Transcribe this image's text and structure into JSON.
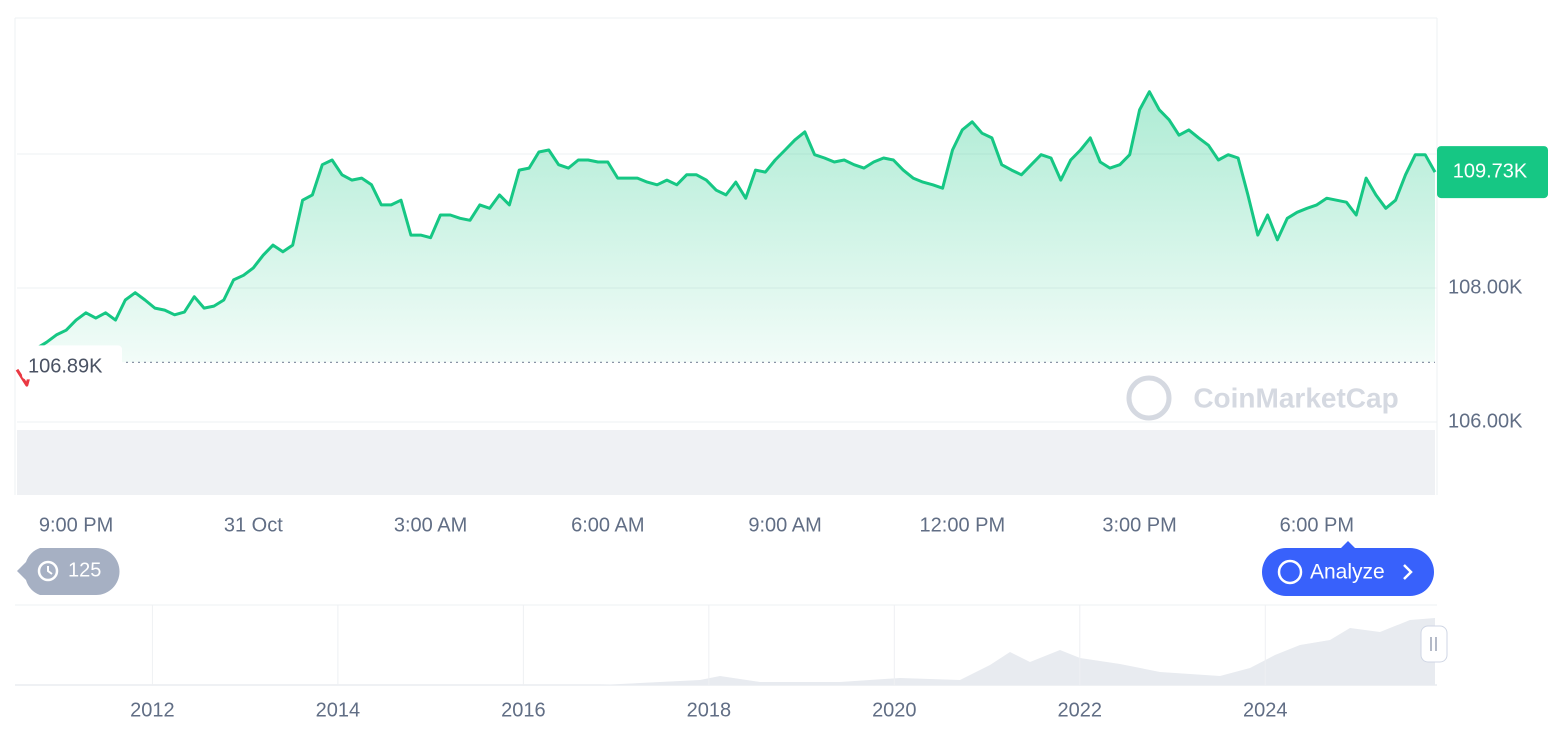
{
  "chart_data": {
    "type": "line",
    "color": "#16c784",
    "down_color": "#ea3943",
    "categories": [
      null,
      null,
      null,
      null,
      null,
      null,
      "9:00 PM",
      null,
      null,
      null,
      null,
      null,
      null,
      null,
      null,
      null,
      null,
      null,
      null,
      null,
      null,
      null,
      null,
      null,
      "31 Oct",
      null,
      null,
      null,
      null,
      null,
      null,
      null,
      null,
      null,
      null,
      null,
      null,
      null,
      null,
      null,
      null,
      null,
      "3:00 AM",
      null,
      null,
      null,
      null,
      null,
      null,
      null,
      null,
      null,
      null,
      null,
      null,
      null,
      null,
      null,
      null,
      null,
      "6:00 AM",
      null,
      null,
      null,
      null,
      null,
      null,
      null,
      null,
      null,
      null,
      null,
      null,
      null,
      null,
      null,
      null,
      null,
      "9:00 AM",
      null,
      null,
      null,
      null,
      null,
      null,
      null,
      null,
      null,
      null,
      null,
      null,
      null,
      null,
      null,
      null,
      null,
      "12:00 PM",
      null,
      null,
      null,
      null,
      null,
      null,
      null,
      null,
      null,
      null,
      null,
      null,
      null,
      null,
      null,
      null,
      null,
      "3:00 PM",
      null,
      null,
      null,
      null,
      null,
      null,
      null,
      null,
      null,
      null,
      null,
      null,
      null,
      null,
      null,
      null,
      null,
      "6:00 PM",
      null,
      null,
      null,
      null,
      null,
      null,
      null,
      null,
      null,
      null,
      null,
      null
    ],
    "values": [
      106780,
      106550,
      107100,
      107190,
      107300,
      107370,
      107520,
      107630,
      107550,
      107630,
      107520,
      107820,
      107930,
      107820,
      107700,
      107670,
      107600,
      107640,
      107870,
      107700,
      107730,
      107820,
      108120,
      108190,
      108300,
      108490,
      108640,
      108540,
      108640,
      109310,
      109390,
      109840,
      109910,
      109690,
      109610,
      109640,
      109540,
      109240,
      109240,
      109310,
      108790,
      108790,
      108750,
      109090,
      109090,
      109040,
      109010,
      109240,
      109190,
      109390,
      109240,
      109760,
      109790,
      110030,
      110060,
      109840,
      109790,
      109910,
      109910,
      109880,
      109880,
      109640,
      109640,
      109640,
      109580,
      109540,
      109610,
      109540,
      109690,
      109690,
      109610,
      109460,
      109390,
      109580,
      109340,
      109760,
      109730,
      109910,
      110060,
      110210,
      110330,
      109990,
      109940,
      109880,
      109910,
      109840,
      109790,
      109880,
      109940,
      109910,
      109760,
      109640,
      109580,
      109540,
      109490,
      110060,
      110360,
      110480,
      110310,
      110240,
      109840,
      109760,
      109690,
      109840,
      109990,
      109940,
      109610,
      109910,
      110060,
      110240,
      109880,
      109790,
      109840,
      109990,
      110660,
      110930,
      110660,
      110510,
      110280,
      110360,
      110240,
      110130,
      109910,
      109990,
      109940,
      109390,
      108790,
      109090,
      108720,
      109040,
      109130,
      109190,
      109240,
      109340,
      109310,
      109280,
      109090,
      109640,
      109390,
      109190,
      109310,
      109690,
      109990,
      109990,
      109730
    ],
    "ylim": [
      104910,
      112030
    ],
    "yticks": [
      {
        "value": 106000,
        "label": "106.00K"
      },
      {
        "value": 108000,
        "label": "108.00K"
      }
    ],
    "baseline": {
      "value": 106890,
      "label": "106.89K"
    },
    "current": {
      "value": 109730,
      "label": "109.73K"
    },
    "watermark": "CoinMarketCap",
    "history_badge": "125",
    "analyze_button": "Analyze",
    "navigator": {
      "xlim": [
        2010.54,
        2025.83
      ],
      "xticks": [
        2012,
        2014,
        2016,
        2018,
        2020,
        2022,
        2024
      ]
    }
  }
}
